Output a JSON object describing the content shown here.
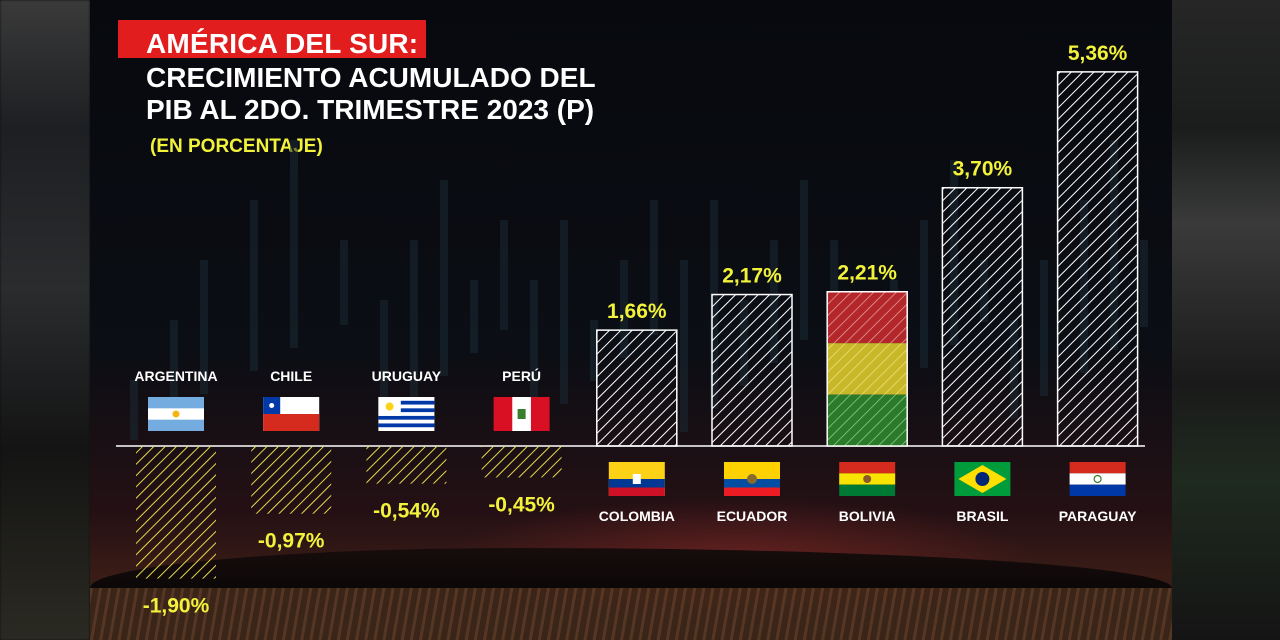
{
  "header": {
    "tag": "AMÉRICA DEL SUR:",
    "title_line1": "CRECIMIENTO ACUMULADO DEL",
    "title_line2": "PIB AL 2DO. TRIMESTRE 2023 (P)",
    "subtitle": "(EN PORCENTAJE)"
  },
  "colors": {
    "positive_bar": "#ffffff",
    "negative_bar": "#e6d94a",
    "value_label": "#f2f23a",
    "tag_background": "#e21d1d"
  },
  "chart_data": {
    "type": "bar",
    "categories": [
      "ARGENTINA",
      "CHILE",
      "URUGUAY",
      "PERÚ",
      "COLOMBIA",
      "ECUADOR",
      "BOLIVIA",
      "BRASIL",
      "PARAGUAY"
    ],
    "values": [
      -1.9,
      -0.97,
      -0.54,
      -0.45,
      1.66,
      2.17,
      2.21,
      3.7,
      5.36
    ],
    "value_labels": [
      "-1,90%",
      "-0,97%",
      "-0,54%",
      "-0,45%",
      "1,66%",
      "2,17%",
      "2,21%",
      "3,70%",
      "5,36%"
    ],
    "flags": [
      "argentina-flag",
      "chile-flag",
      "uruguay-flag",
      "peru-flag",
      "colombia-flag",
      "ecuador-flag",
      "bolivia-flag",
      "brasil-flag",
      "paraguay-flag"
    ],
    "ylim": [
      -1.9,
      5.36
    ],
    "grid": false,
    "legend": "none",
    "bar_fill": "diagonal-hatch"
  }
}
